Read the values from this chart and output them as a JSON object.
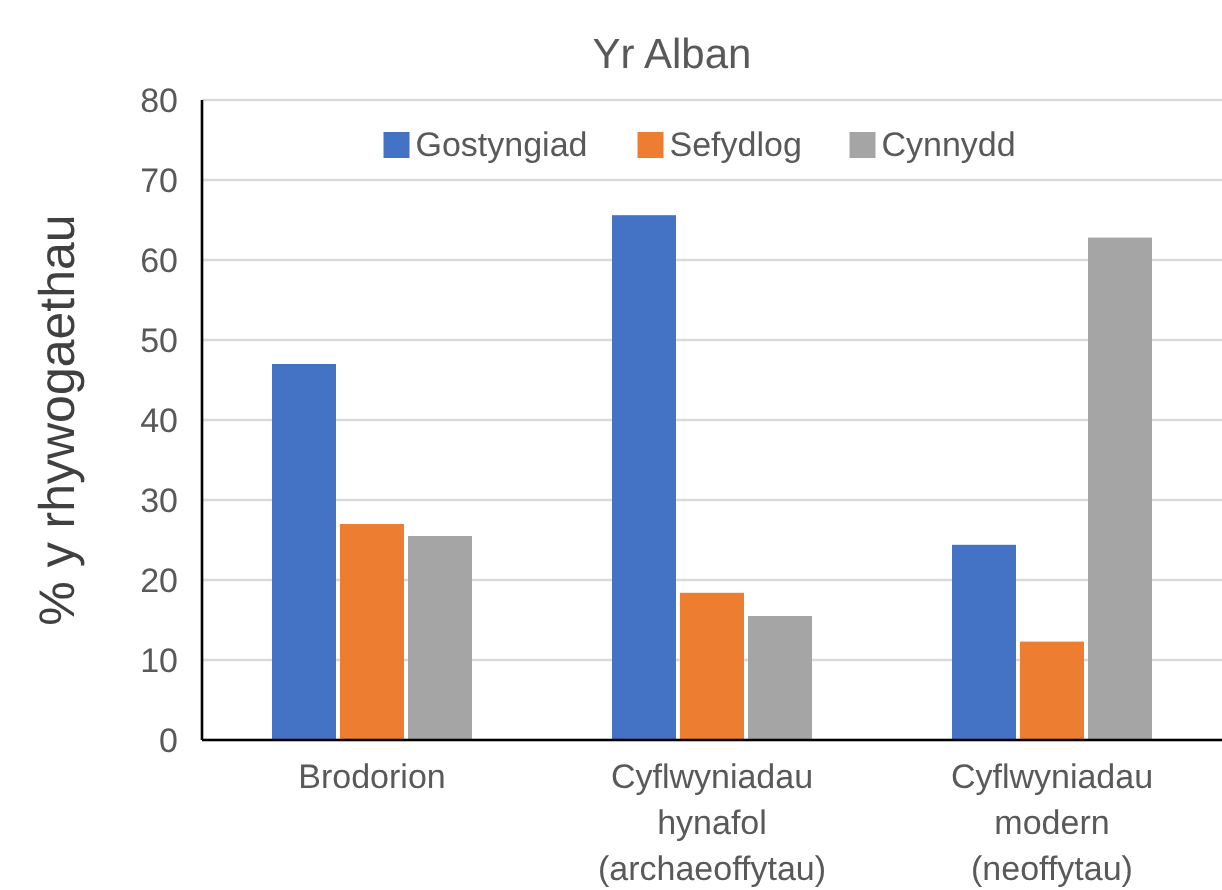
{
  "chart_data": {
    "type": "bar",
    "title": "Yr Alban",
    "ylabel": "% y rhywogaethau",
    "categories": [
      "Brodorion",
      "Cyflwyniadau\nhynafol\n(archaeoffytau)",
      "Cyflwyniadau\nmodern\n(neoffytau)"
    ],
    "series": [
      {
        "name": "Gostyngiad",
        "color": "#4472c4",
        "values": [
          47,
          65.6,
          24.4
        ]
      },
      {
        "name": "Sefydlog",
        "color": "#ed7d31",
        "values": [
          27,
          18.4,
          12.3
        ]
      },
      {
        "name": "Cynnydd",
        "color": "#a5a5a5",
        "values": [
          25.5,
          15.5,
          62.8
        ]
      }
    ],
    "ylim": [
      0,
      80
    ],
    "yticks": [
      0,
      10,
      20,
      30,
      40,
      50,
      60,
      70,
      80
    ],
    "grid": "y",
    "legend": "top"
  }
}
